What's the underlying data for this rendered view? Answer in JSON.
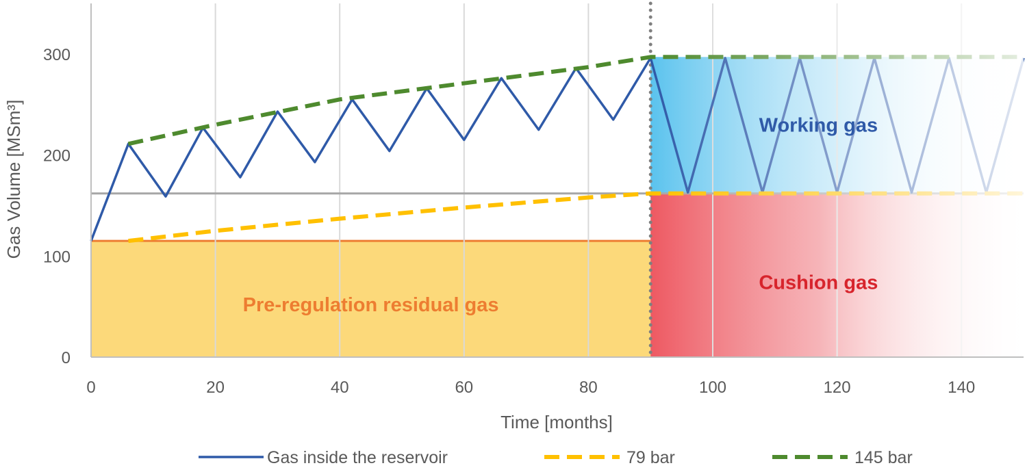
{
  "chart_data": {
    "type": "line",
    "xlabel": "Time [months]",
    "ylabel": "Gas Volume [MSm³]",
    "xlim": [
      0,
      150
    ],
    "ylim": [
      0,
      350
    ],
    "xticks": [
      0,
      20,
      40,
      60,
      80,
      100,
      120,
      140
    ],
    "yticks": [
      0,
      100,
      200,
      300
    ],
    "grid": "vertical",
    "legend_position": "bottom",
    "series": [
      {
        "name": "Gas inside the reservoir",
        "style": "solid",
        "color": "#2F5AA8",
        "x": [
          0,
          6,
          12,
          18,
          24,
          30,
          36,
          42,
          48,
          54,
          60,
          66,
          72,
          78,
          84,
          90,
          96,
          102,
          108,
          114,
          120,
          126,
          132,
          138,
          144,
          150
        ],
        "y": [
          115,
          211,
          159,
          227,
          178,
          243,
          193,
          255,
          204,
          266,
          215,
          276,
          225,
          286,
          235,
          296,
          163,
          296,
          163,
          296,
          163,
          296,
          163,
          296,
          163,
          296
        ]
      },
      {
        "name": "79 bar",
        "style": "dashed",
        "color": "#FFC000",
        "x": [
          6,
          20,
          40,
          60,
          80,
          90,
          150
        ],
        "y": [
          115,
          125,
          137,
          148,
          158,
          162,
          162
        ]
      },
      {
        "name": "145 bar",
        "style": "dashed",
        "color": "#4E8A2E",
        "x": [
          6,
          20,
          40,
          60,
          80,
          90,
          150
        ],
        "y": [
          211,
          230,
          255,
          271,
          287,
          297,
          297
        ]
      }
    ],
    "reference_lines": [
      {
        "orientation": "horizontal",
        "y": 162,
        "x_range": [
          0,
          150
        ],
        "color": "#A6A6A6"
      },
      {
        "orientation": "vertical",
        "x": 90,
        "style": "dotted",
        "color": "#7F7F7F"
      }
    ],
    "regions": [
      {
        "label": "Pre-regulation residual gas",
        "x_range": [
          0,
          90
        ],
        "y_range": [
          0,
          115
        ],
        "color": "#FCD97A",
        "label_color": "#ED7D31"
      },
      {
        "label": "Cushion gas",
        "x_range": [
          90,
          150
        ],
        "y_range": [
          0,
          162
        ],
        "color": "#EE5A63",
        "label_color": "#D7242C"
      },
      {
        "label": "Working gas",
        "x_range": [
          90,
          150
        ],
        "y_range": [
          162,
          297
        ],
        "color": "#5BC3EE",
        "label_color": "#2F5AA8"
      }
    ]
  }
}
